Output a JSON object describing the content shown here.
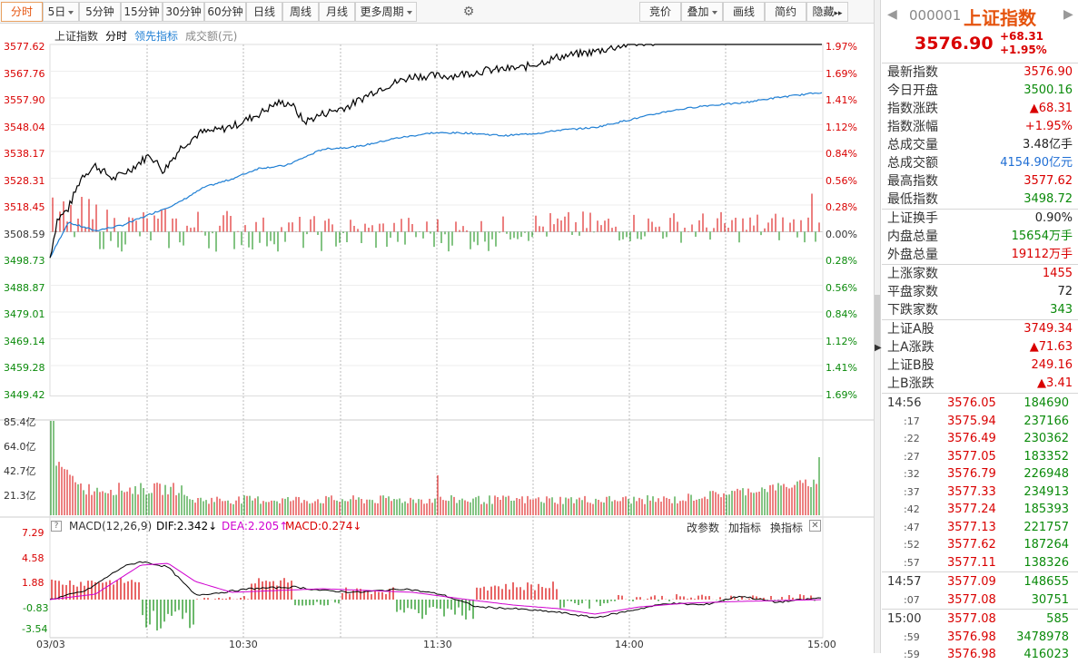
{
  "toolbar": {
    "buttons": [
      {
        "label": "分时",
        "dropdown": false,
        "active": true
      },
      {
        "label": "5日",
        "dropdown": true,
        "active": false
      },
      {
        "label": "5分钟",
        "dropdown": false,
        "active": false
      },
      {
        "label": "15分钟",
        "dropdown": false,
        "active": false
      },
      {
        "label": "30分钟",
        "dropdown": false,
        "active": false
      },
      {
        "label": "60分钟",
        "dropdown": false,
        "active": false
      },
      {
        "label": "日线",
        "dropdown": false,
        "active": false
      },
      {
        "label": "周线",
        "dropdown": false,
        "active": false
      },
      {
        "label": "月线",
        "dropdown": false,
        "active": false
      },
      {
        "label": "更多周期",
        "dropdown": true,
        "active": false
      }
    ],
    "right_buttons": [
      {
        "label": "竞价",
        "dropdown": false
      },
      {
        "label": "叠加",
        "dropdown": true
      },
      {
        "label": "画线",
        "dropdown": false
      },
      {
        "label": "简约",
        "dropdown": false
      },
      {
        "label": "隐藏",
        "dropdown": false,
        "suffix": "▸▸"
      }
    ]
  },
  "legend": {
    "index": "上证指数",
    "mode": "分时",
    "lead": "领先指标",
    "amount": "成交额(元)"
  },
  "price_axis": {
    "left": [
      "3577.62",
      "3567.76",
      "3557.90",
      "3548.04",
      "3538.17",
      "3528.31",
      "3518.45",
      "3508.59",
      "3498.73",
      "3488.87",
      "3479.01",
      "3469.14",
      "3459.28",
      "3449.42"
    ],
    "right": [
      "1.97%",
      "1.69%",
      "1.41%",
      "1.12%",
      "0.84%",
      "0.56%",
      "0.28%",
      "0.00%",
      "0.28%",
      "0.56%",
      "0.84%",
      "1.12%",
      "1.41%",
      "1.69%"
    ]
  },
  "volume_axis": [
    "85.4亿",
    "64.0亿",
    "42.7亿",
    "21.3亿"
  ],
  "macd": {
    "label": "MACD",
    "params": "(12,26,9)",
    "dif": "DIF:2.342",
    "dea": "DEA:2.205",
    "macd": "MACD:0.274",
    "axis": [
      "7.29",
      "4.58",
      "1.88",
      "-0.83",
      "-3.54"
    ],
    "actions": [
      "改参数",
      "加指标",
      "换指标"
    ]
  },
  "x_axis": [
    "03/03",
    "10:30",
    "11:30",
    "14:00",
    "15:00"
  ],
  "colors": {
    "up": "#d90000",
    "down": "#0a8a0a",
    "price": "#000000",
    "avg": "#1f7fd4",
    "accent": "#e5530d",
    "dea": "#d000d0"
  },
  "panel": {
    "code": "000001",
    "name": "上证指数",
    "price": "3576.90",
    "change": "+68.31",
    "change_pct": "+1.95%",
    "stats": [
      {
        "k": "最新指数",
        "v": "3576.90",
        "c": "red"
      },
      {
        "k": "今日开盘",
        "v": "3500.16",
        "c": "green"
      },
      {
        "k": "指数涨跌",
        "v": "▲68.31",
        "c": "red"
      },
      {
        "k": "指数涨幅",
        "v": "+1.95%",
        "c": "red"
      },
      {
        "k": "总成交量",
        "v": "3.48亿手",
        "c": "black"
      },
      {
        "k": "总成交额",
        "v": "4154.90亿元",
        "c": "blue"
      },
      {
        "k": "最高指数",
        "v": "3577.62",
        "c": "red"
      },
      {
        "k": "最低指数",
        "v": "3498.72",
        "c": "green"
      }
    ],
    "stats2": [
      {
        "k": "上证换手",
        "v": "0.90%",
        "c": "black"
      },
      {
        "k": "内盘总量",
        "v": "15654万手",
        "c": "green"
      },
      {
        "k": "外盘总量",
        "v": "19112万手",
        "c": "red"
      }
    ],
    "stats3": [
      {
        "k": "上涨家数",
        "v": "1455",
        "c": "red"
      },
      {
        "k": "平盘家数",
        "v": "72",
        "c": "black"
      },
      {
        "k": "下跌家数",
        "v": "343",
        "c": "green"
      }
    ],
    "stats4": [
      {
        "k": "上证A股",
        "v": "3749.34",
        "c": "red"
      },
      {
        "k": "上A涨跌",
        "v": "▲71.63",
        "c": "red"
      },
      {
        "k": "上证B股",
        "v": "249.16",
        "c": "red"
      },
      {
        "k": "上B涨跌",
        "v": "▲3.41",
        "c": "red"
      }
    ],
    "ticks1": [
      {
        "t": "14:56",
        "p": "3576.05",
        "v": "184690",
        "main": true
      },
      {
        "t": ":17",
        "p": "3575.94",
        "v": "237166"
      },
      {
        "t": ":22",
        "p": "3576.49",
        "v": "230362"
      },
      {
        "t": ":27",
        "p": "3577.05",
        "v": "183352"
      },
      {
        "t": ":32",
        "p": "3576.79",
        "v": "226948"
      },
      {
        "t": ":37",
        "p": "3577.33",
        "v": "234913"
      },
      {
        "t": ":42",
        "p": "3577.24",
        "v": "185393"
      },
      {
        "t": ":47",
        "p": "3577.13",
        "v": "221757"
      },
      {
        "t": ":52",
        "p": "3577.62",
        "v": "187264"
      },
      {
        "t": ":57",
        "p": "3577.11",
        "v": "138326"
      }
    ],
    "ticks2": [
      {
        "t": "14:57",
        "p": "3577.09",
        "v": "148655",
        "main": true
      },
      {
        "t": ":07",
        "p": "3577.08",
        "v": "30751"
      }
    ],
    "ticks3": [
      {
        "t": "15:00",
        "p": "3577.08",
        "v": "585",
        "main": true
      },
      {
        "t": ":59",
        "p": "3576.98",
        "v": "3478978"
      },
      {
        "t": ":59",
        "p": "3576.98",
        "v": "416023"
      }
    ]
  }
}
